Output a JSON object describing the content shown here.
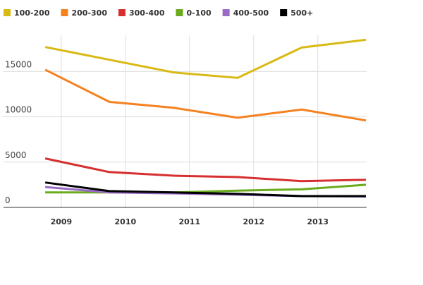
{
  "chart_data": {
    "type": "line",
    "x": [
      2008.75,
      2009.75,
      2010.75,
      2011.75,
      2012.75,
      2013.75
    ],
    "series": [
      {
        "name": "100-200",
        "color": "#d9b913",
        "values": [
          17700,
          16300,
          14900,
          14300,
          17650,
          18500
        ]
      },
      {
        "name": "200-300",
        "color": "#f5821f",
        "values": [
          15200,
          11650,
          11000,
          9900,
          10800,
          9600
        ]
      },
      {
        "name": "300-400",
        "color": "#d62f2f",
        "values": [
          5400,
          3900,
          3500,
          3350,
          2900,
          3050
        ]
      },
      {
        "name": "0-100",
        "color": "#6aaa1e",
        "values": [
          1650,
          1650,
          1650,
          1850,
          2000,
          2500
        ]
      },
      {
        "name": "400-500",
        "color": "#9a6bc6",
        "values": [
          2250,
          1650,
          1550,
          1400,
          1250,
          1200
        ]
      },
      {
        "name": "500+",
        "color": "#000000",
        "values": [
          2750,
          1800,
          1650,
          1500,
          1250,
          1250
        ]
      }
    ],
    "xlim": [
      2008.1,
      2013.75
    ],
    "xticks": [
      2009,
      2010,
      2011,
      2012,
      2013
    ],
    "ylim": [
      0,
      19000
    ],
    "yticks": [
      0,
      5000,
      10000,
      15000
    ],
    "grid": true
  }
}
